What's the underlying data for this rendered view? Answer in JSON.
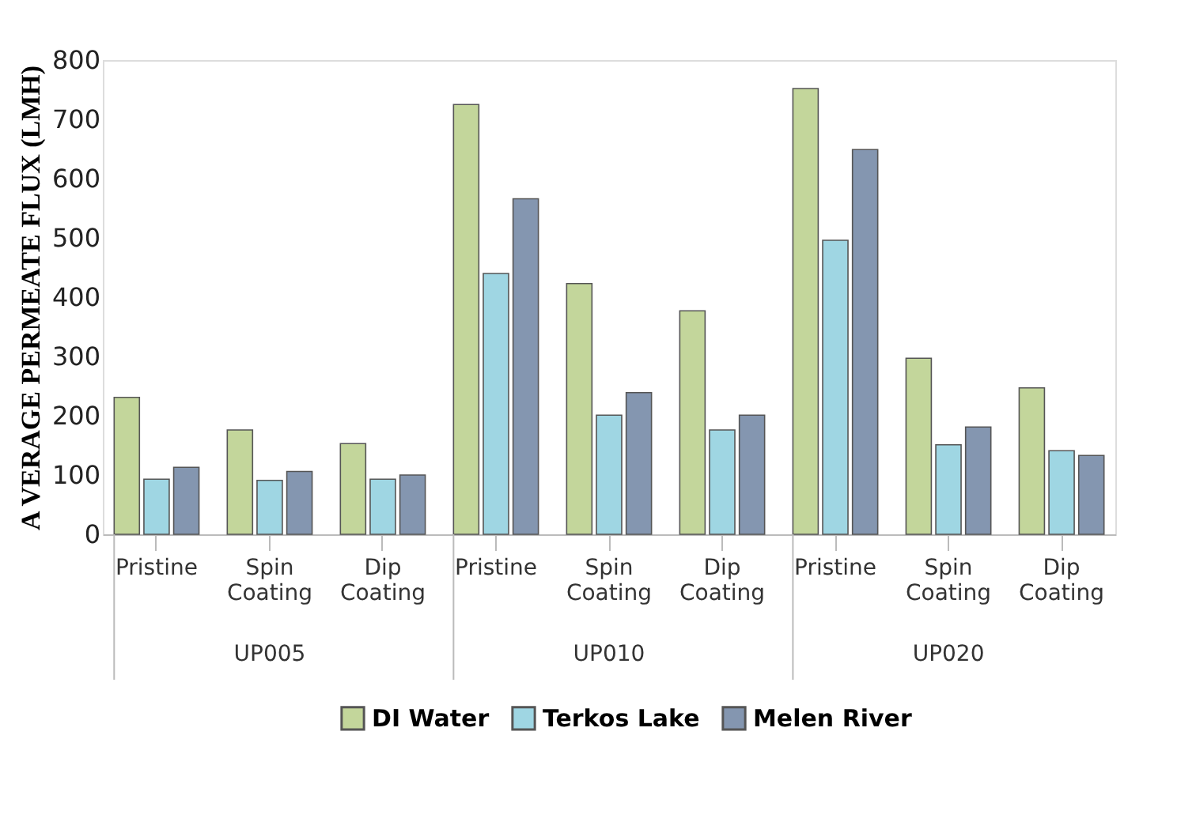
{
  "chart_data": {
    "type": "bar",
    "ylabel": "A VERAGE PERMEATE FLUX (LMH)",
    "categories": [
      "Pristine",
      "Spin Coating",
      "Dip Coating",
      "Pristine",
      "Spin Coating",
      "Dip Coating",
      "Pristine",
      "Spin Coating",
      "Dip Coating"
    ],
    "annotations": [
      "UP005",
      "UP010",
      "UP020"
    ],
    "series": [
      {
        "name": "DI Water",
        "color": "#c3d69b",
        "values": [
          231,
          176,
          153,
          725,
          423,
          377,
          752,
          297,
          247
        ]
      },
      {
        "name": "Terkos Lake",
        "color": "#9fd6e3",
        "values": [
          93,
          91,
          93,
          440,
          201,
          176,
          496,
          151,
          141
        ]
      },
      {
        "name": "Melen River",
        "color": "#8496b0",
        "values": [
          113,
          106,
          100,
          566,
          239,
          201,
          649,
          181,
          133
        ]
      }
    ],
    "ylim": [
      0,
      800
    ],
    "yticks": [
      0,
      100,
      200,
      300,
      400,
      500,
      600,
      700,
      800
    ],
    "grid": false,
    "legend": "bottom"
  }
}
